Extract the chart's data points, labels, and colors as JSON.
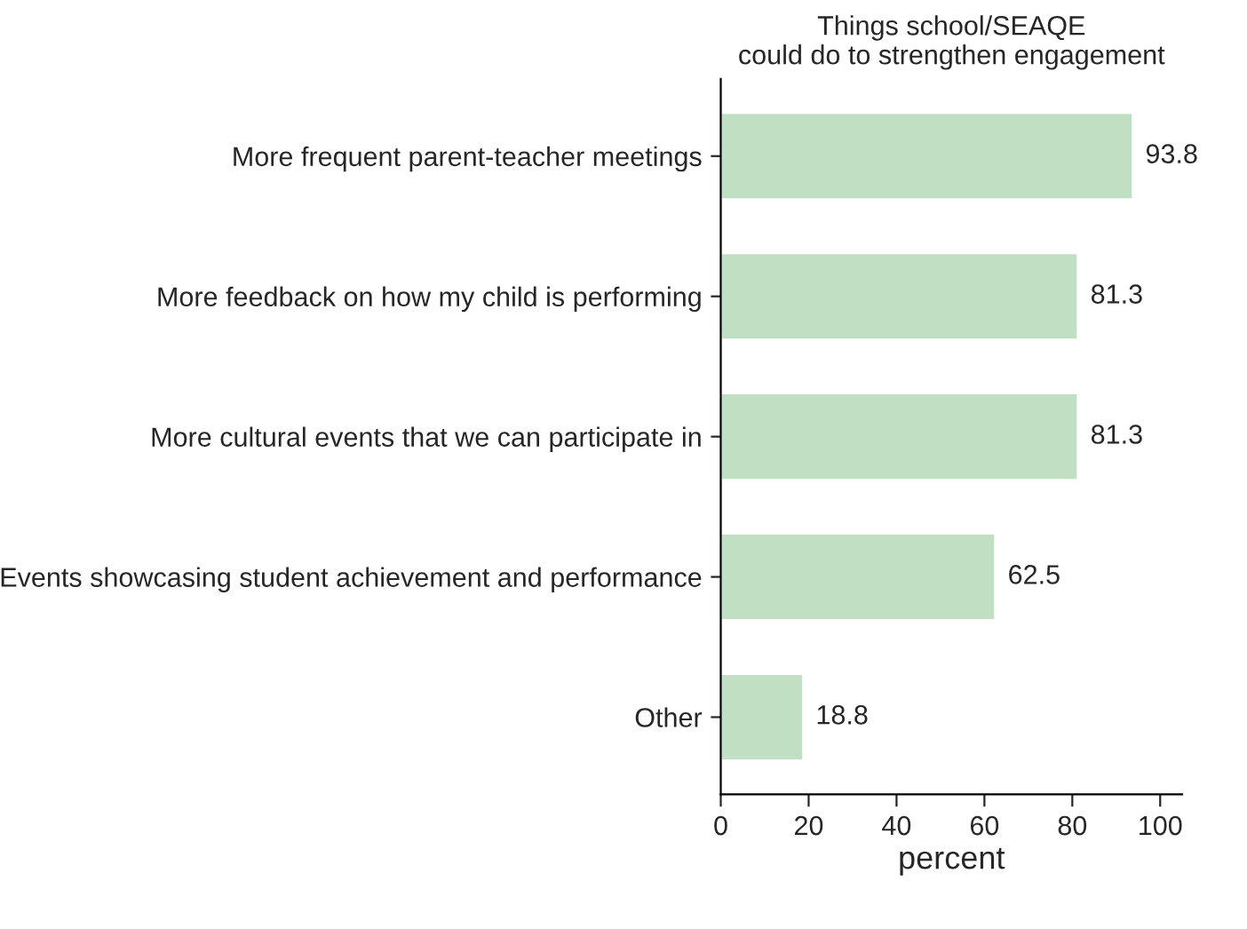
{
  "chart_data": {
    "type": "bar",
    "orientation": "horizontal",
    "title": "Things school/SEAQE\ncould do to strengthen engagement",
    "xlabel": "percent",
    "categories": [
      "More frequent parent-teacher meetings",
      "More feedback on how my child is performing",
      "More cultural events that we can participate in",
      "Events showcasing student achievement and performance",
      "Other"
    ],
    "values": [
      93.8,
      81.3,
      81.3,
      62.5,
      18.8
    ],
    "color": "#c1dfc3",
    "data_labels": true,
    "xlim": [
      0,
      105
    ],
    "xticks": [
      0,
      20,
      40,
      60,
      80,
      100
    ],
    "grid": false,
    "legend": false
  }
}
